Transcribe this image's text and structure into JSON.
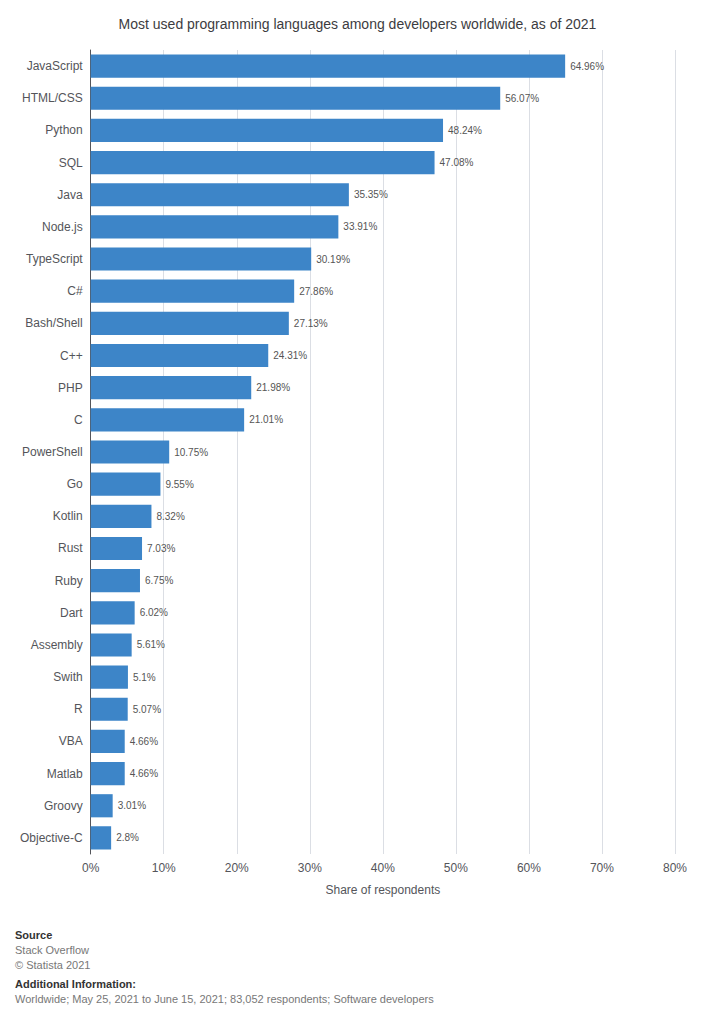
{
  "chart_data": {
    "type": "bar",
    "orientation": "horizontal",
    "title": "Most used programming languages among developers worldwide, as of 2021",
    "categories": [
      "JavaScript",
      "HTML/CSS",
      "Python",
      "SQL",
      "Java",
      "Node.js",
      "TypeScript",
      "C#",
      "Bash/Shell",
      "C++",
      "PHP",
      "C",
      "PowerShell",
      "Go",
      "Kotlin",
      "Rust",
      "Ruby",
      "Dart",
      "Assembly",
      "Swith",
      "R",
      "VBA",
      "Matlab",
      "Groovy",
      "Objective-C"
    ],
    "values": [
      64.96,
      56.07,
      48.24,
      47.08,
      35.35,
      33.91,
      30.19,
      27.86,
      27.13,
      24.31,
      21.98,
      21.01,
      10.75,
      9.55,
      8.32,
      7.03,
      6.75,
      6.02,
      5.61,
      5.1,
      5.07,
      4.66,
      4.66,
      3.01,
      2.8
    ],
    "value_labels": [
      "64.96%",
      "56.07%",
      "48.24%",
      "47.08%",
      "35.35%",
      "33.91%",
      "30.19%",
      "27.86%",
      "27.13%",
      "24.31%",
      "21.98%",
      "21.01%",
      "10.75%",
      "9.55%",
      "8.32%",
      "7.03%",
      "6.75%",
      "6.02%",
      "5.61%",
      "5.1%",
      "5.07%",
      "4.66%",
      "4.66%",
      "3.01%",
      "2.8%"
    ],
    "data_labels": true,
    "color": "#3d85c8",
    "xlabel": "Share of respondents",
    "xlim": [
      0,
      80
    ],
    "xticks": [
      {
        "value": 0,
        "label": "0%"
      },
      {
        "value": 10,
        "label": "10%"
      },
      {
        "value": 20,
        "label": "20%"
      },
      {
        "value": 30,
        "label": "30%"
      },
      {
        "value": 40,
        "label": "40%"
      },
      {
        "value": 50,
        "label": "50%"
      },
      {
        "value": 60,
        "label": "60%"
      },
      {
        "value": 70,
        "label": "70%"
      },
      {
        "value": 80,
        "label": "80%"
      }
    ],
    "grid": true,
    "annotations": [
      "Source",
      "Stack Overflow",
      "© Statista 2021",
      "Additional Information:",
      "Worldwide; May 25, 2021 to June 15, 2021; 83,052 respondents; Software developers"
    ]
  }
}
